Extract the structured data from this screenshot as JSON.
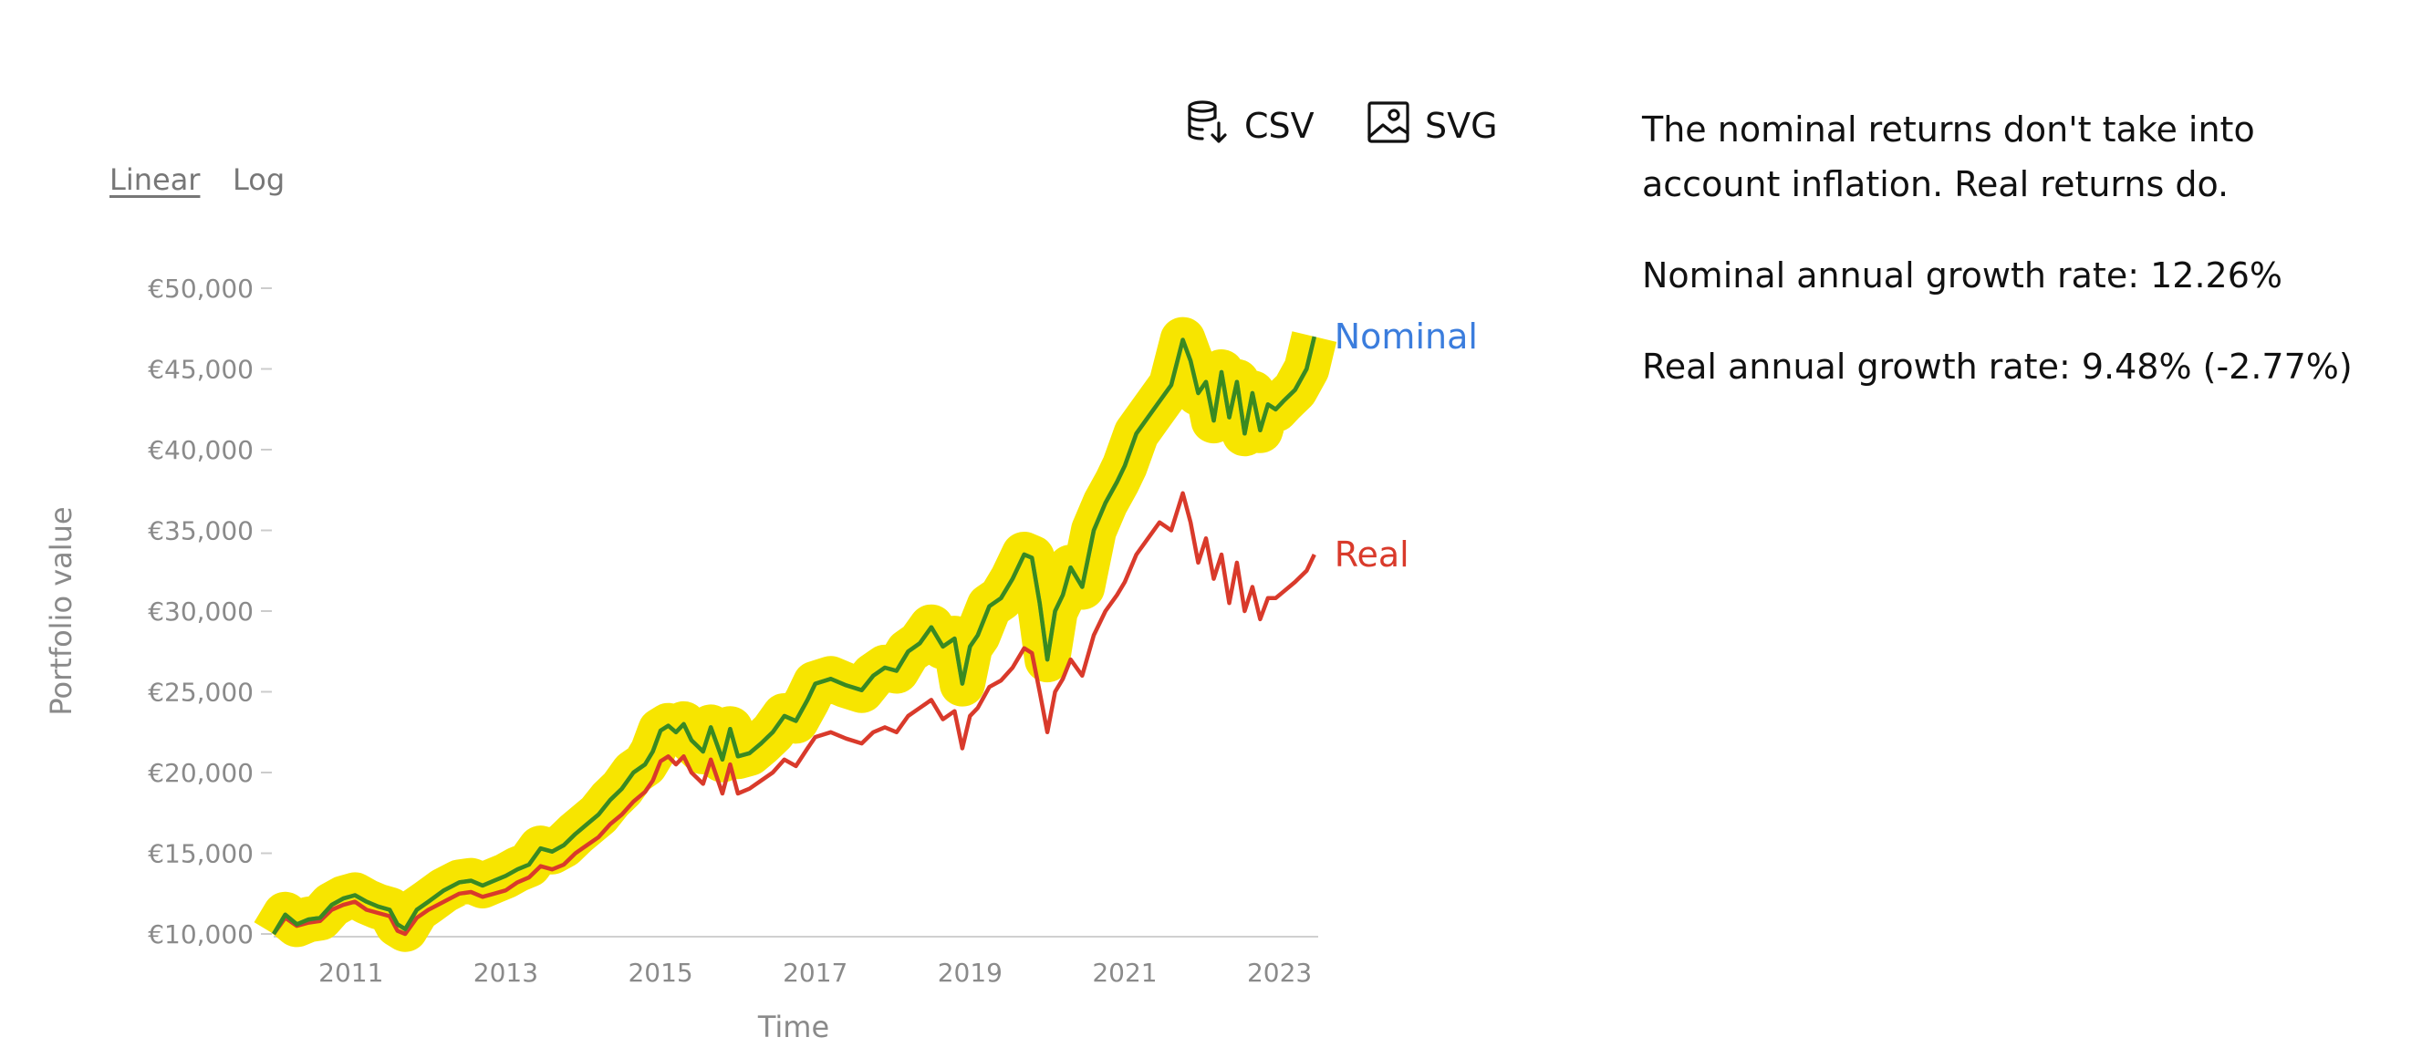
{
  "toolbar": {
    "csv_label": "CSV",
    "svg_label": "SVG",
    "csv_icon": "database-download-icon",
    "svg_icon": "image-icon"
  },
  "scale": {
    "linear_label": "Linear",
    "log_label": "Log",
    "selected": "Linear"
  },
  "info": {
    "description": "The nominal returns don't take into account inflation. Real returns do.",
    "nominal_rate": "Nominal annual growth rate: 12.26%",
    "real_rate": "Real annual growth rate: 9.48% (-2.77%)"
  },
  "chart_data": {
    "type": "line",
    "xlabel": "Time",
    "ylabel": "Portfolio value",
    "xlim": [
      2010.0,
      2023.5
    ],
    "ylim": [
      10000,
      50000
    ],
    "x_ticks": [
      2011,
      2013,
      2015,
      2017,
      2019,
      2021,
      2023
    ],
    "y_ticks": [
      10000,
      15000,
      20000,
      25000,
      30000,
      35000,
      40000,
      45000,
      50000
    ],
    "y_tick_labels": [
      "€10,000",
      "€15,000",
      "€20,000",
      "€25,000",
      "€30,000",
      "€35,000",
      "€40,000",
      "€45,000",
      "€50,000"
    ],
    "grid": false,
    "series": [
      {
        "name": "Nominal",
        "color": "#3b7ddd",
        "highlight_band_color": "#f7e500",
        "highlight_overlay_color": "#3a8a1f",
        "x": [
          2010.0,
          2010.15,
          2010.3,
          2010.45,
          2010.6,
          2010.75,
          2010.9,
          2011.05,
          2011.2,
          2011.35,
          2011.5,
          2011.6,
          2011.7,
          2011.85,
          2012.0,
          2012.2,
          2012.4,
          2012.55,
          2012.7,
          2012.85,
          2013.0,
          2013.15,
          2013.3,
          2013.45,
          2013.6,
          2013.75,
          2013.9,
          2014.05,
          2014.2,
          2014.35,
          2014.5,
          2014.65,
          2014.8,
          2014.9,
          2015.0,
          2015.1,
          2015.2,
          2015.3,
          2015.4,
          2015.55,
          2015.65,
          2015.8,
          2015.9,
          2016.0,
          2016.15,
          2016.3,
          2016.45,
          2016.6,
          2016.75,
          2016.9,
          2017.0,
          2017.2,
          2017.4,
          2017.6,
          2017.75,
          2017.9,
          2018.05,
          2018.2,
          2018.35,
          2018.5,
          2018.65,
          2018.8,
          2018.9,
          2019.0,
          2019.1,
          2019.25,
          2019.4,
          2019.55,
          2019.7,
          2019.8,
          2019.9,
          2020.0,
          2020.1,
          2020.2,
          2020.3,
          2020.45,
          2020.6,
          2020.75,
          2020.9,
          2021.0,
          2021.15,
          2021.3,
          2021.45,
          2021.6,
          2021.75,
          2021.85,
          2021.95,
          2022.05,
          2022.15,
          2022.25,
          2022.35,
          2022.45,
          2022.55,
          2022.65,
          2022.75,
          2022.85,
          2022.95,
          2023.05,
          2023.2,
          2023.35,
          2023.45
        ],
        "values": [
          10000,
          11200,
          10600,
          10900,
          11000,
          11800,
          12200,
          12400,
          12000,
          11700,
          11500,
          10600,
          10300,
          11500,
          12000,
          12700,
          13200,
          13300,
          13000,
          13300,
          13600,
          14000,
          14300,
          15300,
          15100,
          15500,
          16200,
          16800,
          17400,
          18300,
          19000,
          20000,
          20500,
          21300,
          22600,
          22900,
          22500,
          23000,
          22000,
          21300,
          22800,
          20800,
          22700,
          21000,
          21200,
          21800,
          22500,
          23500,
          23200,
          24500,
          25500,
          25800,
          25400,
          25100,
          26000,
          26500,
          26300,
          27500,
          28000,
          29000,
          27800,
          28300,
          25500,
          27800,
          28500,
          30300,
          30800,
          32000,
          33500,
          33300,
          30500,
          27000,
          30000,
          31000,
          32700,
          31500,
          35000,
          36700,
          38000,
          39000,
          41000,
          42000,
          43000,
          44000,
          46800,
          45500,
          43500,
          44200,
          41800,
          44800,
          42000,
          44200,
          41000,
          43500,
          41200,
          42800,
          42500,
          43000,
          43700,
          45000,
          47000
        ]
      },
      {
        "name": "Real",
        "color": "#d93a2b",
        "x": [
          2010.0,
          2010.15,
          2010.3,
          2010.45,
          2010.6,
          2010.75,
          2010.9,
          2011.05,
          2011.2,
          2011.35,
          2011.5,
          2011.6,
          2011.7,
          2011.85,
          2012.0,
          2012.2,
          2012.4,
          2012.55,
          2012.7,
          2012.85,
          2013.0,
          2013.15,
          2013.3,
          2013.45,
          2013.6,
          2013.75,
          2013.9,
          2014.05,
          2014.2,
          2014.35,
          2014.5,
          2014.65,
          2014.8,
          2014.9,
          2015.0,
          2015.1,
          2015.2,
          2015.3,
          2015.4,
          2015.55,
          2015.65,
          2015.8,
          2015.9,
          2016.0,
          2016.15,
          2016.3,
          2016.45,
          2016.6,
          2016.75,
          2016.9,
          2017.0,
          2017.2,
          2017.4,
          2017.6,
          2017.75,
          2017.9,
          2018.05,
          2018.2,
          2018.35,
          2018.5,
          2018.65,
          2018.8,
          2018.9,
          2019.0,
          2019.1,
          2019.25,
          2019.4,
          2019.55,
          2019.7,
          2019.8,
          2019.9,
          2020.0,
          2020.1,
          2020.2,
          2020.3,
          2020.45,
          2020.6,
          2020.75,
          2020.9,
          2021.0,
          2021.15,
          2021.3,
          2021.45,
          2021.6,
          2021.75,
          2021.85,
          2021.95,
          2022.05,
          2022.15,
          2022.25,
          2022.35,
          2022.45,
          2022.55,
          2022.65,
          2022.75,
          2022.85,
          2022.95,
          2023.05,
          2023.2,
          2023.35,
          2023.45
        ],
        "values": [
          10000,
          11000,
          10500,
          10700,
          10800,
          11500,
          11800,
          12000,
          11500,
          11300,
          11100,
          10200,
          10000,
          11000,
          11500,
          12000,
          12500,
          12600,
          12300,
          12500,
          12700,
          13200,
          13500,
          14200,
          14000,
          14300,
          15000,
          15500,
          16000,
          16800,
          17400,
          18200,
          18800,
          19500,
          20700,
          21000,
          20500,
          21000,
          20000,
          19300,
          20800,
          18700,
          20500,
          18700,
          19000,
          19500,
          20000,
          20800,
          20400,
          21500,
          22200,
          22500,
          22100,
          21800,
          22500,
          22800,
          22500,
          23500,
          24000,
          24500,
          23300,
          23800,
          21500,
          23500,
          24000,
          25300,
          25700,
          26500,
          27700,
          27400,
          25000,
          22500,
          25000,
          25800,
          27000,
          26000,
          28500,
          30000,
          31000,
          31800,
          33500,
          34500,
          35500,
          35000,
          37300,
          35500,
          33000,
          34500,
          32000,
          33500,
          30500,
          33000,
          30000,
          31500,
          29500,
          30800,
          30800,
          31200,
          31800,
          32500,
          33500
        ]
      }
    ]
  }
}
